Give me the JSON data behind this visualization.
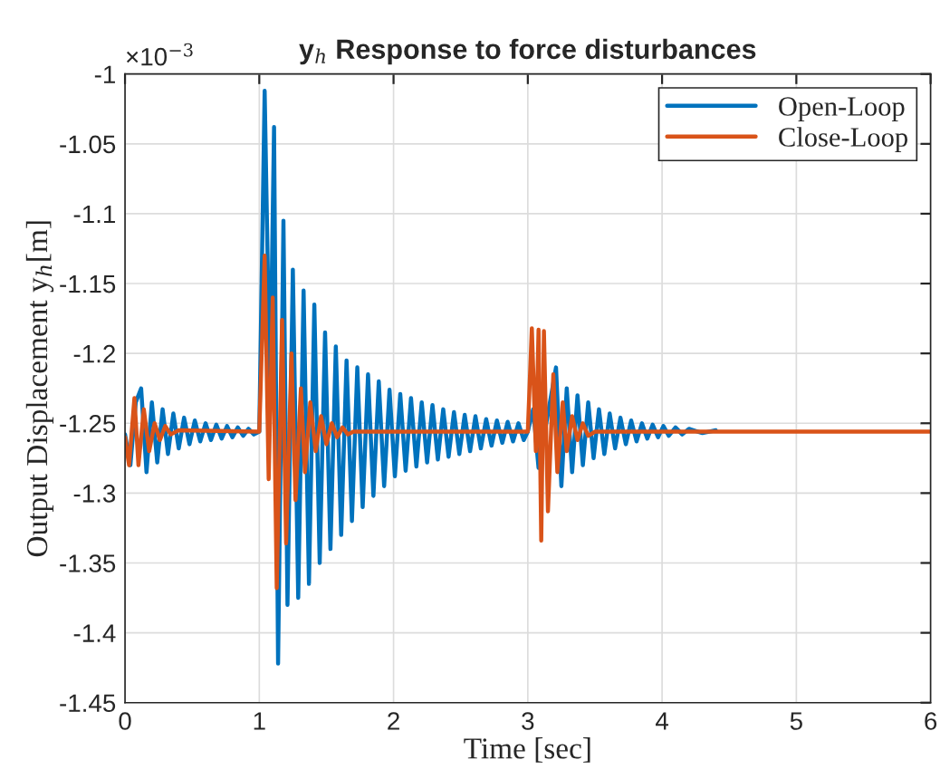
{
  "chart_data": {
    "type": "line",
    "title": "y$_{h}$ Response to force disturbances",
    "xlabel": "Time [sec]",
    "ylabel": "Output Displacement y$_{h}$[m]",
    "annotations": [
      "×10$^{−3}$"
    ],
    "xlim": [
      0,
      6
    ],
    "xticks": [
      0,
      1,
      2,
      3,
      4,
      5,
      6
    ],
    "ylim": [
      -1.45,
      -1
    ],
    "yticks": [
      -1.45,
      -1.4,
      -1.35,
      -1.3,
      -1.25,
      -1.2,
      -1.15,
      -1.1,
      -1.05,
      -1
    ],
    "grid": true,
    "legend": "top right",
    "line_style": "solid",
    "marker": "none",
    "series": [
      {
        "name": "Open-Loop",
        "color": "#0072bd",
        "x": [
          0,
          0.04,
          0.08,
          0.12,
          0.16,
          0.2,
          0.24,
          0.28,
          0.32,
          0.36,
          0.4,
          0.44,
          0.48,
          0.52,
          0.56,
          0.6,
          0.64,
          0.68,
          0.72,
          0.76,
          0.8,
          0.84,
          0.88,
          0.92,
          0.96,
          1.0,
          1.04,
          1.08,
          1.11,
          1.14,
          1.18,
          1.21,
          1.25,
          1.29,
          1.33,
          1.37,
          1.41,
          1.45,
          1.49,
          1.53,
          1.57,
          1.61,
          1.65,
          1.69,
          1.73,
          1.77,
          1.81,
          1.85,
          1.89,
          1.93,
          1.97,
          2.01,
          2.05,
          2.09,
          2.13,
          2.17,
          2.21,
          2.25,
          2.29,
          2.33,
          2.37,
          2.41,
          2.45,
          2.49,
          2.53,
          2.57,
          2.61,
          2.65,
          2.69,
          2.73,
          2.77,
          2.81,
          2.85,
          2.89,
          2.93,
          2.97,
          3.0,
          3.04,
          3.08,
          3.12,
          3.16,
          3.21,
          3.25,
          3.29,
          3.33,
          3.37,
          3.41,
          3.45,
          3.49,
          3.53,
          3.57,
          3.61,
          3.65,
          3.69,
          3.73,
          3.77,
          3.81,
          3.85,
          3.89,
          3.93,
          3.97,
          4.01,
          4.05,
          4.1,
          4.15,
          4.2,
          4.3,
          4.4
        ],
        "values": [
          -1.258,
          -1.28,
          -1.235,
          -1.225,
          -1.285,
          -1.235,
          -1.278,
          -1.24,
          -1.272,
          -1.243,
          -1.268,
          -1.246,
          -1.265,
          -1.248,
          -1.263,
          -1.25,
          -1.262,
          -1.251,
          -1.261,
          -1.252,
          -1.26,
          -1.253,
          -1.259,
          -1.254,
          -1.258,
          -1.256,
          -1.012,
          -1.23,
          -1.038,
          -1.422,
          -1.105,
          -1.38,
          -1.14,
          -1.375,
          -1.155,
          -1.365,
          -1.165,
          -1.35,
          -1.185,
          -1.34,
          -1.195,
          -1.33,
          -1.205,
          -1.32,
          -1.21,
          -1.31,
          -1.215,
          -1.302,
          -1.22,
          -1.295,
          -1.226,
          -1.288,
          -1.229,
          -1.284,
          -1.232,
          -1.281,
          -1.235,
          -1.278,
          -1.237,
          -1.276,
          -1.24,
          -1.274,
          -1.242,
          -1.272,
          -1.244,
          -1.27,
          -1.245,
          -1.268,
          -1.247,
          -1.266,
          -1.248,
          -1.264,
          -1.249,
          -1.263,
          -1.25,
          -1.262,
          -1.256,
          -1.24,
          -1.282,
          null,
          null,
          -1.21,
          -1.295,
          -1.225,
          -1.285,
          -1.23,
          -1.28,
          -1.235,
          -1.275,
          -1.24,
          -1.272,
          -1.243,
          -1.268,
          -1.246,
          -1.265,
          -1.248,
          -1.263,
          -1.25,
          -1.261,
          -1.251,
          -1.26,
          -1.252,
          -1.259,
          -1.253,
          -1.258,
          -1.254,
          -1.257,
          -1.255
        ]
      },
      {
        "name": "Close-Loop",
        "color": "#d95319",
        "x": [
          0,
          0.03,
          0.07,
          0.1,
          0.14,
          0.18,
          0.22,
          0.26,
          0.3,
          0.34,
          0.4,
          1.0,
          1.04,
          1.07,
          1.1,
          1.13,
          1.17,
          1.2,
          1.24,
          1.27,
          1.31,
          1.34,
          1.38,
          1.42,
          1.46,
          1.5,
          1.54,
          1.58,
          1.62,
          1.66,
          1.7,
          3.0,
          3.03,
          3.06,
          3.08,
          3.1,
          3.12,
          3.15,
          3.19,
          3.22,
          3.26,
          3.29,
          3.33,
          3.37,
          3.41,
          3.45,
          3.5,
          6
        ],
        "values": [
          -1.26,
          -1.28,
          -1.232,
          -1.28,
          -1.24,
          -1.27,
          -1.25,
          -1.262,
          -1.252,
          -1.258,
          -1.255,
          -1.256,
          -1.13,
          -1.29,
          -1.16,
          -1.368,
          -1.176,
          -1.336,
          -1.2,
          -1.305,
          -1.225,
          -1.285,
          -1.235,
          -1.27,
          -1.245,
          -1.265,
          -1.25,
          -1.26,
          -1.253,
          -1.258,
          -1.256,
          -1.256,
          -1.182,
          -1.27,
          -1.183,
          -1.334,
          -1.184,
          -1.313,
          -1.215,
          -1.285,
          -1.235,
          -1.27,
          -1.245,
          -1.262,
          -1.25,
          -1.259,
          -1.256,
          -1.256
        ]
      }
    ]
  }
}
